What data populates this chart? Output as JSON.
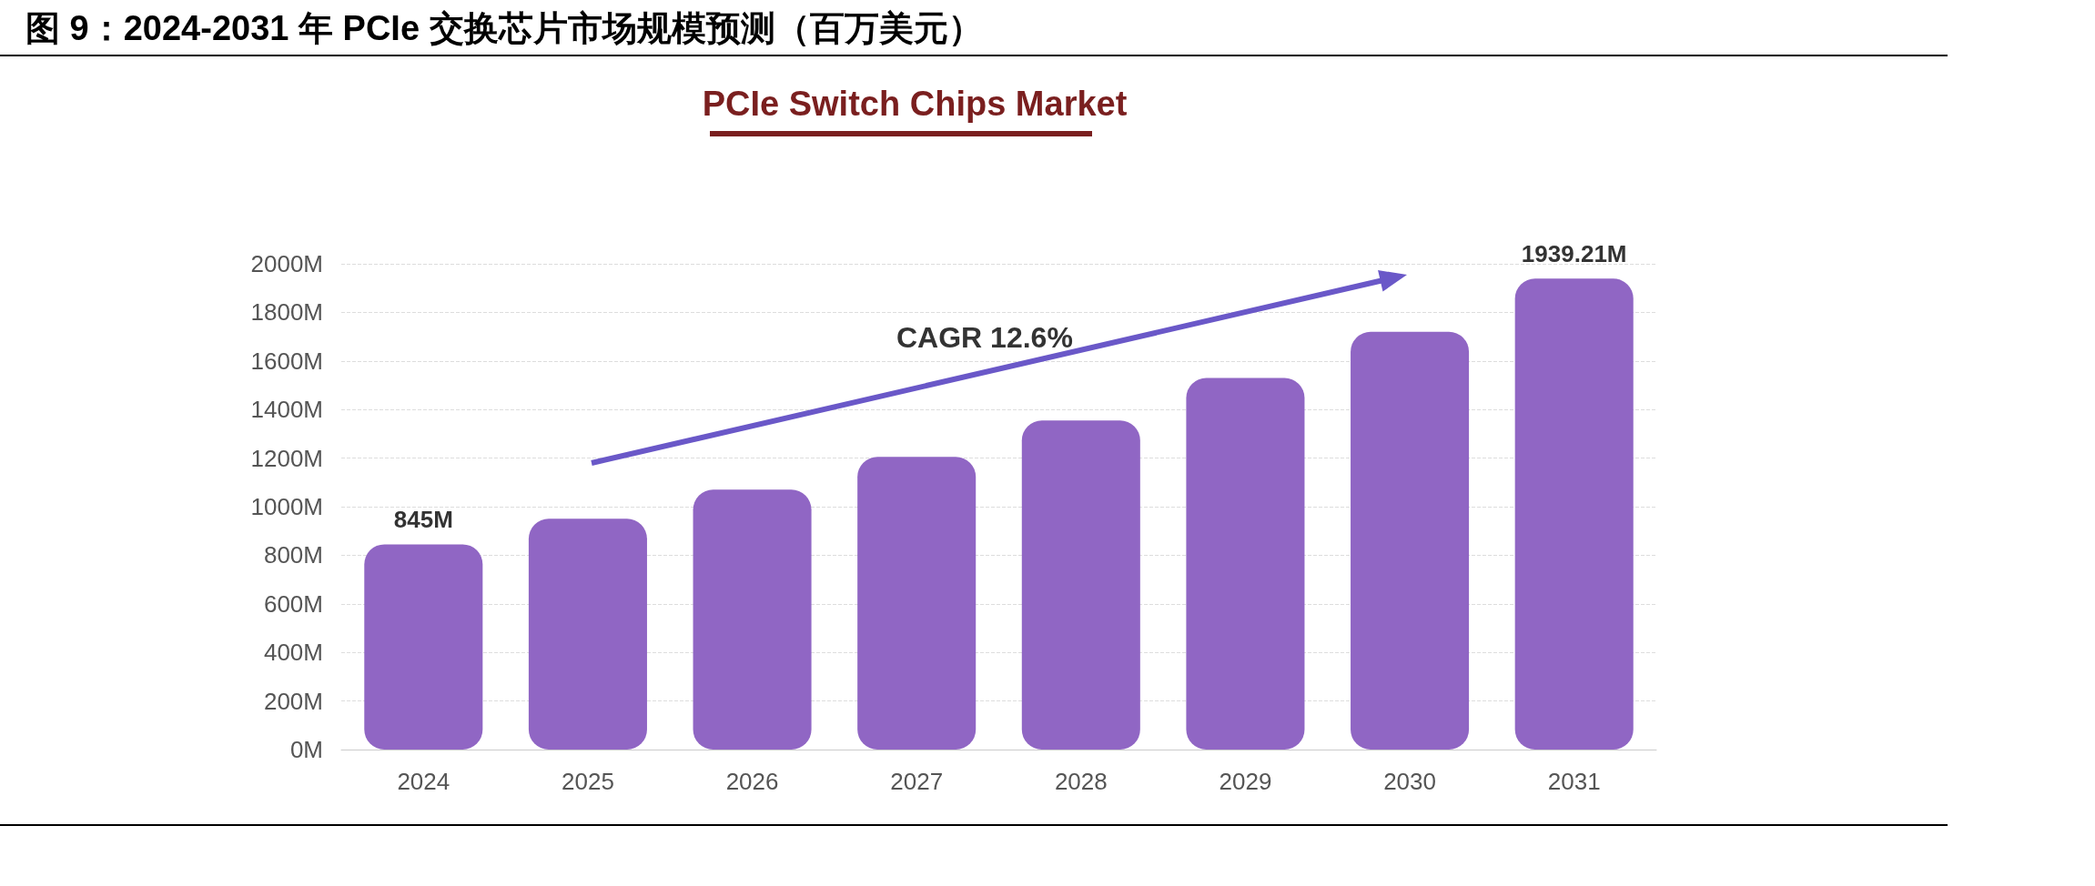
{
  "chart_data": {
    "type": "bar",
    "title": "图 9：2024-2031 年 PCIe 交换芯片市场规模预测（百万美元）",
    "subtitle": "PCIe Switch Chips Market",
    "annotations": [
      "CAGR 12.6%"
    ],
    "categories": [
      "2024",
      "2025",
      "2026",
      "2027",
      "2028",
      "2029",
      "2030",
      "2031"
    ],
    "values": [
      845,
      950,
      1070,
      1205,
      1355,
      1530,
      1720,
      1939.21
    ],
    "value_labels": [
      "845M",
      null,
      null,
      null,
      null,
      null,
      null,
      "1939.21M"
    ],
    "color": "#9066c4",
    "ylim": [
      0,
      2000
    ],
    "yticks": [
      {
        "value": 0,
        "label": "0M"
      },
      {
        "value": 200,
        "label": "200M"
      },
      {
        "value": 400,
        "label": "400M"
      },
      {
        "value": 600,
        "label": "600M"
      },
      {
        "value": 800,
        "label": "800M"
      },
      {
        "value": 1000,
        "label": "1000M"
      },
      {
        "value": 1200,
        "label": "1200M"
      },
      {
        "value": 1400,
        "label": "1400M"
      },
      {
        "value": 1600,
        "label": "1600M"
      },
      {
        "value": 1800,
        "label": "1800M"
      },
      {
        "value": 2000,
        "label": "2000M"
      }
    ],
    "grid": "y"
  }
}
